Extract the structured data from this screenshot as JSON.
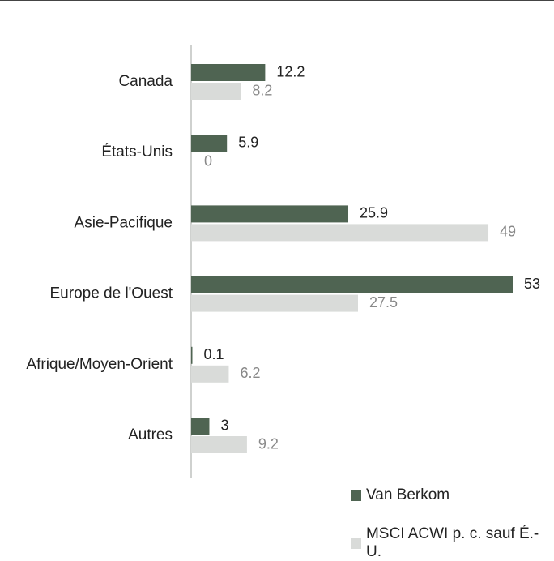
{
  "colors": {
    "series_primary": "#4f6452",
    "series_secondary": "#d9dbd9",
    "label_primary": "#222222",
    "label_secondary": "#888888",
    "axis": "#cfd1cf"
  },
  "chart_data": {
    "type": "bar",
    "orientation": "horizontal",
    "categories": [
      "Canada",
      "États-Unis",
      "Asie-Pacifique",
      "Europe de l'Ouest",
      "Afrique/Moyen-Orient",
      "Autres"
    ],
    "series": [
      {
        "name": "Van Berkom",
        "values": [
          12.2,
          5.9,
          25.9,
          53,
          0.1,
          3
        ],
        "labels": [
          "12.2",
          "5.9",
          "25.9",
          "53",
          "0.1",
          "3"
        ]
      },
      {
        "name": "MSCI ACWI p. c. sauf É.-U.",
        "values": [
          8.2,
          0,
          49,
          27.5,
          6.2,
          9.2
        ],
        "labels": [
          "8.2",
          "0",
          "49",
          "27.5",
          "6.2",
          "9.2"
        ]
      }
    ],
    "xlim": [
      0,
      53
    ],
    "grid": false,
    "legend_position": "bottom-right"
  }
}
